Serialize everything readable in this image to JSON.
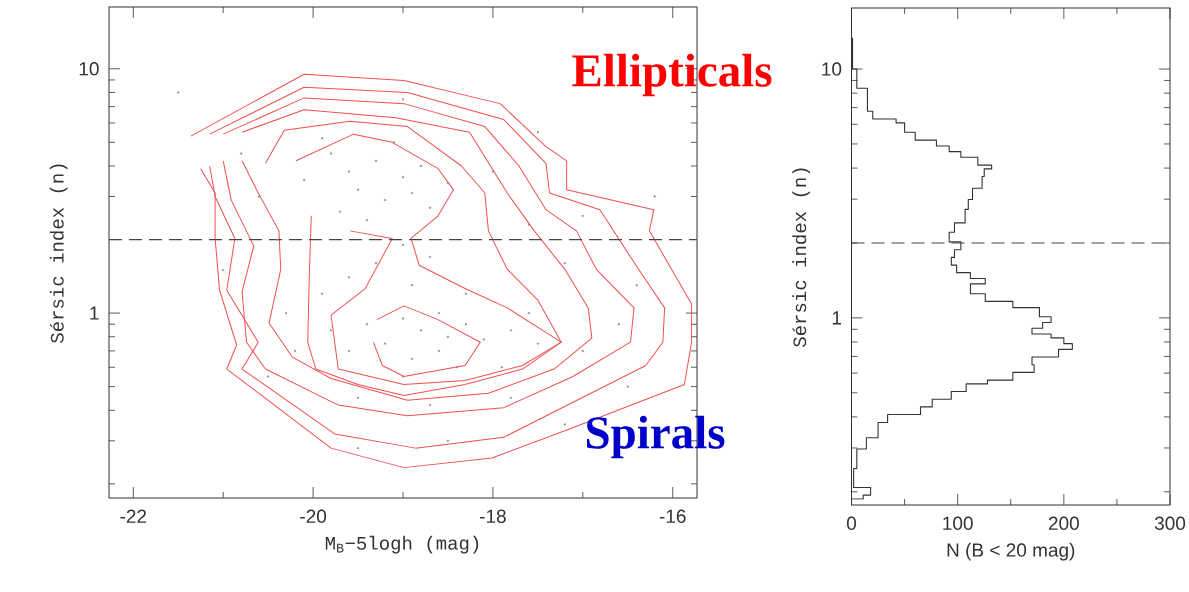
{
  "chart_data": [
    {
      "type": "scatter",
      "xlabel": "M$_{B}$−5logh (mag)",
      "ylabel": "Sérsic index (n)",
      "log": "y",
      "xlim": [
        -22.27,
        -15.73
      ],
      "ylim": [
        0.175,
        17.9
      ],
      "xticks": [
        -22,
        -20,
        -18,
        -16,
        {
          "value": -21,
          "label": null
        },
        {
          "value": -19,
          "label": null
        },
        {
          "value": -17,
          "label": null
        }
      ],
      "yticks": [
        1,
        10,
        {
          "value": 0.2,
          "label": null
        },
        {
          "value": 0.3,
          "label": null
        },
        {
          "value": 0.4,
          "label": null
        },
        {
          "value": 0.5,
          "label": null
        },
        {
          "value": 0.6,
          "label": null
        },
        {
          "value": 0.7,
          "label": null
        },
        {
          "value": 0.8,
          "label": null
        },
        {
          "value": 0.9,
          "label": null
        },
        {
          "value": 2,
          "label": null
        },
        {
          "value": 3,
          "label": null
        },
        {
          "value": 4,
          "label": null
        },
        {
          "value": 5,
          "label": null
        },
        {
          "value": 6,
          "label": null
        },
        {
          "value": 7,
          "label": null
        },
        {
          "value": 8,
          "label": null
        },
        {
          "value": 9,
          "label": null
        }
      ],
      "ref_lines": [
        {
          "axis": "y",
          "value": 2,
          "color": "#444444",
          "line_style": "dashed"
        }
      ],
      "annotations": [
        "Ellipticals",
        "Spirals"
      ],
      "series": [
        {
          "type": "scatter",
          "marker": "circle",
          "color": "#8a8a8a",
          "x": [
            -19.8,
            -19.6,
            -19.3,
            -19.0,
            -18.8,
            -19.5,
            -19.2,
            -18.9,
            -19.7,
            -19.4,
            -18.7,
            -20.1,
            -19.9,
            -18.5,
            -19.1,
            -19.0,
            -19.3,
            -18.7,
            -19.6,
            -18.9,
            -18.3,
            -19.9,
            -19.0,
            -18.8,
            -18.5,
            -19.2,
            -18.6,
            -18.3,
            -19.4,
            -18.9,
            -18.1,
            -17.8,
            -17.5,
            -19.6,
            -18.4,
            -19.0,
            -17.9,
            -18.6,
            -19.8,
            -17.6,
            -20.3,
            -20.4,
            -20.6,
            -20.2,
            -19.5,
            -18.7,
            -17.8,
            -17.0,
            -16.6,
            -16.4,
            -17.2,
            -17.6,
            -17.0,
            -18.0,
            -20.8,
            -21.0,
            -19.0,
            -17.5,
            -16.2,
            -18.5,
            -19.5,
            -21.5,
            -16.5,
            -17.2,
            -20.5
          ],
          "values": [
            4.5,
            3.8,
            4.2,
            3.6,
            4.0,
            3.2,
            2.9,
            3.1,
            2.6,
            2.4,
            2.7,
            3.5,
            5.2,
            3.4,
            5.0,
            1.9,
            1.6,
            1.7,
            1.4,
            1.3,
            1.2,
            1.2,
            0.95,
            0.85,
            0.8,
            0.75,
            0.7,
            0.9,
            0.9,
            0.65,
            0.78,
            0.85,
            0.75,
            0.7,
            0.6,
            0.55,
            0.6,
            1.0,
            0.85,
            1.0,
            1.0,
            2.0,
            3.0,
            0.7,
            0.45,
            0.42,
            0.45,
            0.7,
            0.9,
            1.3,
            1.6,
            2.3,
            2.5,
            3.8,
            4.5,
            1.5,
            7.5,
            5.5,
            3.0,
            0.3,
            0.28,
            8.0,
            0.5,
            0.35,
            0.55
          ]
        },
        {
          "type": "line",
          "marker": "none",
          "color": "#f05050",
          "x": [
            -21.36,
            -20.1,
            -18.99,
            -17.92,
            -17.41,
            -17.18,
            -17.18,
            -16.21,
            -16.26,
            -15.79,
            -15.79,
            -15.87,
            -17.2,
            -18.01,
            -18.99,
            -19.8,
            -20.96,
            -20.85,
            -21.04,
            -21.09,
            -21.09,
            -21.25
          ],
          "values": [
            5.3,
            9.5,
            8.95,
            7.2,
            4.8,
            4.2,
            3.2,
            2.65,
            2.17,
            1.09,
            0.76,
            0.51,
            0.33,
            0.255,
            0.233,
            0.28,
            0.59,
            0.74,
            1.24,
            2.02,
            3.1,
            3.9
          ]
        },
        {
          "type": "line",
          "marker": "none",
          "color": "#f05050",
          "x": [
            -21.15,
            -20.1,
            -18.95,
            -17.88,
            -17.41,
            -17.37,
            -16.81,
            -16.38,
            -16.09,
            -16.11,
            -16.3,
            -17.88,
            -18.86,
            -19.76,
            -20.79,
            -20.61,
            -20.96,
            -20.87,
            -21.09,
            -21.15
          ],
          "values": [
            5.4,
            8.4,
            8.0,
            6.2,
            4.1,
            3.1,
            2.65,
            1.51,
            1.05,
            0.76,
            0.61,
            0.31,
            0.28,
            0.32,
            0.59,
            0.76,
            1.24,
            2.02,
            3.0,
            4.0
          ]
        },
        {
          "type": "line",
          "marker": "none",
          "color": "#f05050",
          "x": [
            -21.0,
            -20.1,
            -18.99,
            -18.09,
            -17.71,
            -17.41,
            -17.07,
            -16.85,
            -16.43,
            -16.47,
            -17.11,
            -17.88,
            -18.95,
            -19.72,
            -20.53,
            -20.74,
            -20.79,
            -20.66,
            -20.91,
            -21.0
          ],
          "values": [
            5.4,
            7.6,
            7.2,
            5.8,
            4.0,
            2.65,
            2.17,
            1.51,
            1.05,
            0.76,
            0.55,
            0.41,
            0.38,
            0.42,
            0.59,
            0.76,
            1.22,
            1.88,
            2.9,
            4.2
          ]
        },
        {
          "type": "line",
          "marker": "none",
          "color": "#f05050",
          "x": [
            -20.79,
            -20.1,
            -19.08,
            -18.26,
            -17.84,
            -17.54,
            -17.2,
            -16.94,
            -16.9,
            -17.32,
            -18.05,
            -18.95,
            -19.8,
            -20.23,
            -20.49,
            -20.36,
            -20.38,
            -20.61,
            -20.79
          ],
          "values": [
            5.5,
            6.8,
            6.3,
            5.5,
            3.1,
            2.17,
            1.51,
            1.05,
            0.79,
            0.59,
            0.47,
            0.44,
            0.54,
            0.66,
            0.91,
            1.51,
            2.17,
            3.1,
            4.2
          ]
        },
        {
          "type": "line",
          "marker": "none",
          "color": "#f05050",
          "x": [
            -20.53,
            -20.32,
            -19.59,
            -18.95,
            -18.35,
            -18.09,
            -18.05,
            -17.84,
            -17.5,
            -17.24,
            -17.67,
            -18.31,
            -18.99,
            -19.5,
            -19.97,
            -20.06,
            -20.04,
            -20.02
          ],
          "values": [
            4.1,
            5.6,
            6.1,
            5.8,
            4.0,
            3.1,
            2.17,
            1.51,
            1.13,
            0.76,
            0.59,
            0.51,
            0.46,
            0.51,
            0.59,
            0.76,
            1.51,
            2.5
          ]
        },
        {
          "type": "line",
          "marker": "none",
          "color": "#f05050",
          "x": [
            -20.19,
            -19.55,
            -19.12,
            -18.61,
            -18.44,
            -18.61,
            -18.91,
            -18.82,
            -18.31,
            -17.84,
            -17.24,
            -17.67,
            -18.31,
            -18.99,
            -19.72,
            -19.8,
            -19.42,
            -19.12,
            -19.59
          ],
          "values": [
            4.2,
            5.4,
            5.0,
            3.9,
            3.2,
            2.5,
            2.02,
            1.57,
            1.26,
            1.05,
            0.76,
            0.61,
            0.53,
            0.51,
            0.59,
            0.98,
            1.26,
            2.02,
            2.17
          ]
        },
        {
          "type": "line",
          "marker": "none",
          "color": "#f05050",
          "x": [
            -19.29,
            -18.99,
            -18.61,
            -18.14,
            -18.31,
            -18.99,
            -19.23,
            -19.33
          ],
          "values": [
            0.94,
            1.07,
            0.94,
            0.76,
            0.61,
            0.55,
            0.61,
            0.76
          ]
        }
      ]
    },
    {
      "type": "histogram",
      "orientation": "horizontal",
      "color": "#333333",
      "xlabel": "N (B < 20 mag)",
      "ylabel": "Sérsic index (n)",
      "log": "y",
      "xlim": [
        0,
        300
      ],
      "ylim": [
        0.177,
        17.6
      ],
      "xticks": [
        0,
        100,
        200,
        300,
        {
          "value": 50,
          "label": null
        },
        {
          "value": 150,
          "label": null
        },
        {
          "value": 250,
          "label": null
        }
      ],
      "yticks": [
        1,
        10,
        {
          "value": 0.2,
          "label": null
        },
        {
          "value": 0.3,
          "label": null
        },
        {
          "value": 0.4,
          "label": null
        },
        {
          "value": 0.5,
          "label": null
        },
        {
          "value": 0.6,
          "label": null
        },
        {
          "value": 0.7,
          "label": null
        },
        {
          "value": 0.8,
          "label": null
        },
        {
          "value": 0.9,
          "label": null
        },
        {
          "value": 2,
          "label": null
        },
        {
          "value": 3,
          "label": null
        },
        {
          "value": 4,
          "label": null
        },
        {
          "value": 5,
          "label": null
        },
        {
          "value": 6,
          "label": null
        },
        {
          "value": 7,
          "label": null
        },
        {
          "value": 8,
          "label": null
        },
        {
          "value": 9,
          "label": null
        }
      ],
      "ref_lines": [
        {
          "axis": "y",
          "value": 2,
          "color": "#444444",
          "line_style": "dashed"
        }
      ],
      "bins": [
        0.187,
        0.194,
        0.208,
        0.248,
        0.297,
        0.33,
        0.38,
        0.409,
        0.439,
        0.471,
        0.506,
        0.543,
        0.562,
        0.604,
        0.648,
        0.696,
        0.747,
        0.788,
        0.831,
        0.861,
        0.908,
        0.958,
        1.01,
        1.1,
        1.165,
        1.25,
        1.37,
        1.44,
        1.52,
        1.63,
        1.75,
        1.88,
        2.02,
        2.21,
        2.41,
        2.73,
        2.99,
        3.32,
        3.7,
        3.97,
        4.11,
        4.42,
        4.66,
        4.91,
        5.18,
        5.57,
        6.08,
        6.3,
        6.77,
        8.37,
        10.0,
        13.3
      ],
      "values": [
        11,
        18,
        2,
        5,
        14,
        25,
        34,
        65,
        76,
        94,
        108,
        128,
        152,
        172,
        170,
        195,
        208,
        200,
        188,
        170,
        180,
        188,
        177,
        152,
        126,
        112,
        126,
        112,
        99,
        94,
        97,
        103,
        92,
        97,
        107,
        110,
        114,
        123,
        125,
        132,
        119,
        103,
        92,
        80,
        60,
        50,
        42,
        20,
        15,
        5,
        1
      ]
    }
  ]
}
